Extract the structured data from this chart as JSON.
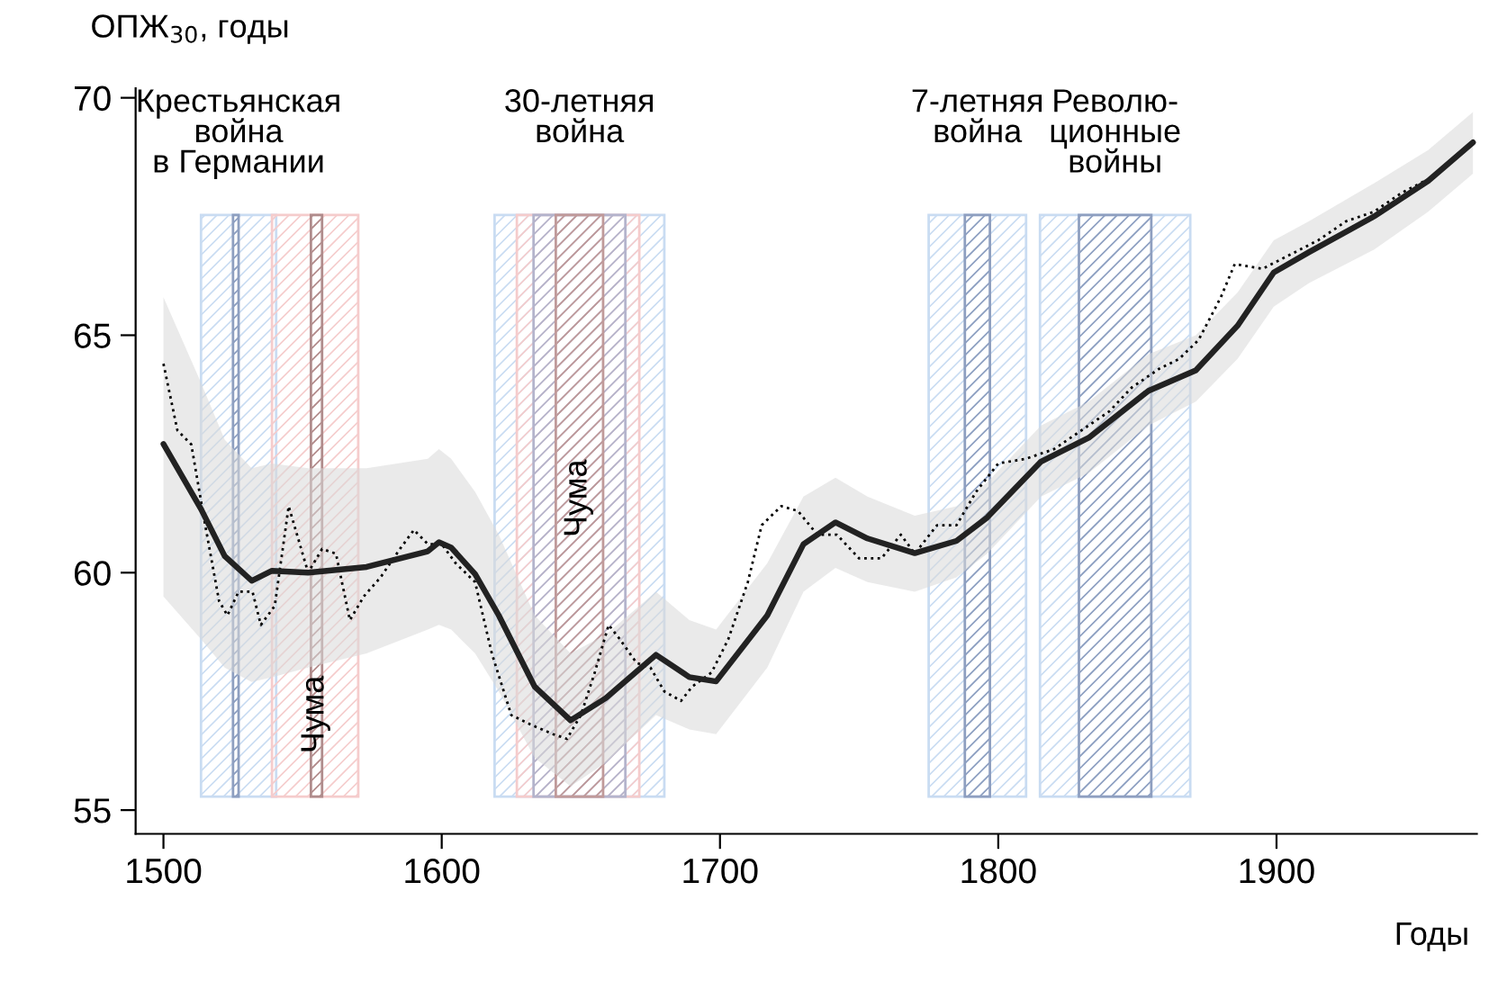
{
  "chart_data": {
    "type": "line",
    "xlabel": "Годы",
    "ylabel": "ОПЖ$_{30}$, годы",
    "xlim": [
      1490,
      1972
    ],
    "ylim": [
      54.5,
      70.2
    ],
    "xticks": [
      1500,
      1600,
      1700,
      1800,
      1900
    ],
    "yticks": [
      55,
      60,
      65,
      70
    ],
    "grid": false,
    "series": [
      {
        "color": "#000000",
        "line_style": "dotted",
        "x": [
          1500,
          1505,
          1510,
          1515,
          1520,
          1523,
          1527,
          1532,
          1535,
          1540,
          1545,
          1548,
          1552,
          1557,
          1562,
          1567,
          1572,
          1578,
          1585,
          1590,
          1595,
          1600,
          1605,
          1612,
          1618,
          1625,
          1632,
          1640,
          1645,
          1650,
          1655,
          1660,
          1664,
          1670,
          1675,
          1680,
          1686,
          1690,
          1697,
          1703,
          1710,
          1715,
          1722,
          1728,
          1735,
          1742,
          1750,
          1758,
          1765,
          1770,
          1778,
          1785,
          1792,
          1800,
          1810,
          1820,
          1830,
          1840,
          1848,
          1858,
          1865,
          1872,
          1880,
          1885,
          1895,
          1905,
          1915,
          1925,
          1935,
          1945,
          1955,
          1965
        ],
        "values": [
          64.4,
          63.0,
          62.7,
          61.0,
          59.4,
          59.1,
          59.6,
          59.6,
          58.9,
          59.3,
          61.4,
          60.8,
          60.0,
          60.5,
          60.4,
          59.0,
          59.5,
          59.9,
          60.5,
          60.9,
          60.6,
          60.6,
          60.2,
          59.8,
          58.3,
          57.0,
          56.8,
          56.6,
          56.5,
          57.0,
          57.9,
          58.9,
          58.6,
          58.1,
          58.0,
          57.5,
          57.3,
          57.6,
          57.9,
          58.6,
          59.8,
          61.0,
          61.4,
          61.3,
          60.8,
          60.8,
          60.3,
          60.3,
          60.8,
          60.4,
          61.0,
          61.0,
          61.7,
          62.3,
          62.4,
          62.6,
          63.0,
          63.4,
          63.9,
          64.3,
          64.5,
          64.9,
          65.8,
          66.5,
          66.4,
          66.7,
          67.0,
          67.4,
          67.6,
          68.0,
          68.3,
          68.8
        ]
      },
      {
        "color": "#222222",
        "line_style": "solid",
        "x": [
          1500,
          1513.5,
          1522,
          1531.7,
          1539,
          1552,
          1573,
          1595,
          1599,
          1603.4,
          1612,
          1620.5,
          1633.4,
          1646.3,
          1659,
          1677,
          1689,
          1698.6,
          1717,
          1730,
          1741.5,
          1753,
          1770,
          1785,
          1796,
          1815.4,
          1832.5,
          1854,
          1871,
          1886,
          1899,
          1911.7,
          1935,
          1954.5,
          1970.6
        ],
        "values": [
          62.71,
          61.34,
          60.35,
          59.83,
          60.04,
          60.0,
          60.12,
          60.45,
          60.64,
          60.53,
          59.97,
          59.1,
          57.6,
          56.89,
          57.36,
          58.27,
          57.8,
          57.71,
          59.1,
          60.6,
          61.06,
          60.72,
          60.41,
          60.67,
          61.16,
          62.34,
          62.84,
          63.83,
          64.26,
          65.2,
          66.32,
          66.75,
          67.5,
          68.25,
          69.06
        ],
        "lower": [
          59.5,
          58.6,
          58.0,
          57.7,
          57.8,
          58.0,
          58.3,
          58.8,
          58.9,
          58.8,
          58.3,
          57.5,
          56.1,
          55.5,
          56.0,
          57.0,
          56.7,
          56.6,
          58.0,
          59.6,
          60.1,
          59.8,
          59.6,
          59.9,
          60.4,
          61.6,
          62.1,
          63.1,
          63.6,
          64.5,
          65.6,
          66.1,
          66.8,
          67.6,
          68.4
        ],
        "upper": [
          65.8,
          64.0,
          62.8,
          62.2,
          62.3,
          62.2,
          62.2,
          62.4,
          62.6,
          62.4,
          61.7,
          60.8,
          59.1,
          58.3,
          58.7,
          59.6,
          59.0,
          58.8,
          60.2,
          61.6,
          62.0,
          61.6,
          61.2,
          61.4,
          61.9,
          63.1,
          63.6,
          64.6,
          65.0,
          65.9,
          67.0,
          67.4,
          68.2,
          68.9,
          69.7
        ]
      }
    ],
    "bands": [
      {
        "axis": "x",
        "from": 1513.5,
        "to": 1540.5,
        "color": "#c9dcf2",
        "label": "Крестьянская\nвойна\nв Германии"
      },
      {
        "axis": "x",
        "from": 1525,
        "to": 1527,
        "color": "#8e9fc0"
      },
      {
        "axis": "x",
        "from": 1539,
        "to": 1570,
        "color": "#f5cccc",
        "label": "Чума"
      },
      {
        "axis": "x",
        "from": 1553,
        "to": 1557,
        "color": "#b08c8c"
      },
      {
        "axis": "x",
        "from": 1619,
        "to": 1680,
        "color": "#c9dcf2",
        "label": "30-летняя\nвойна"
      },
      {
        "axis": "x",
        "from": 1627,
        "to": 1671,
        "color": "#f5cccc",
        "label": "Чума"
      },
      {
        "axis": "x",
        "from": 1633,
        "to": 1666,
        "color": "#b4b4cc"
      },
      {
        "axis": "x",
        "from": 1641,
        "to": 1658,
        "color": "#c09a9a"
      },
      {
        "axis": "x",
        "from": 1775,
        "to": 1810,
        "color": "#c9dcf2",
        "label": "7-летняя\nвойна"
      },
      {
        "axis": "x",
        "from": 1788,
        "to": 1797,
        "color": "#8e9fc0"
      },
      {
        "axis": "x",
        "from": 1815,
        "to": 1869,
        "color": "#c9dcf2",
        "label": "Револю-\nционные\nвойны"
      },
      {
        "axis": "x",
        "from": 1829,
        "to": 1855,
        "color": "#8e9fc0"
      }
    ]
  }
}
